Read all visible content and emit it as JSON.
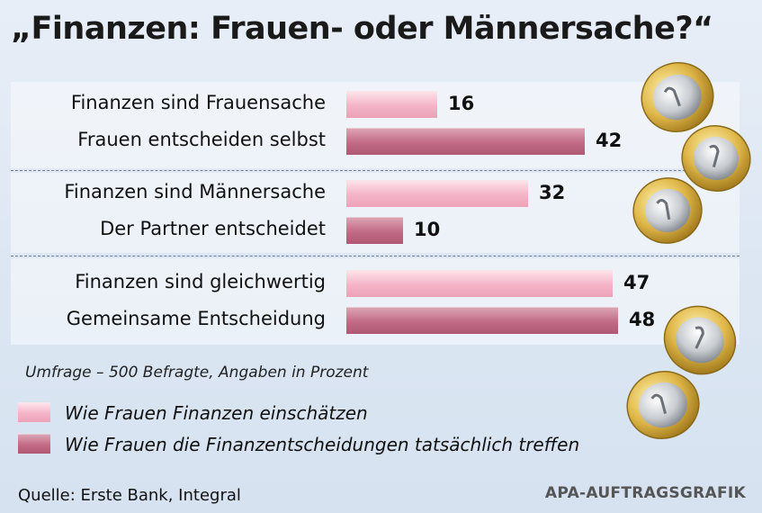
{
  "title": "„Finanzen: Frauen- oder Männersache?“",
  "chart_data": {
    "type": "bar",
    "orientation": "horizontal",
    "title": "„Finanzen: Frauen- oder Männersache?“",
    "unit": "Prozent",
    "categories": [
      "Finanzen sind Frauensache",
      "Frauen entscheiden selbst",
      "Finanzen sind Männersache",
      "Der Partner entscheidet",
      "Finanzen sind gleichwertig",
      "Gemeinsame Entscheidung"
    ],
    "values": [
      16,
      42,
      32,
      10,
      47,
      48
    ],
    "series_index": [
      0,
      1,
      0,
      1,
      0,
      1
    ],
    "groups": [
      [
        0,
        1
      ],
      [
        2,
        3
      ],
      [
        4,
        5
      ]
    ],
    "series": [
      {
        "name": "Wie Frauen Finanzen einschätzen",
        "color": "#f4b3c6"
      },
      {
        "name": "Wie Frauen die Finanzentscheidungen tatsächlich treffen",
        "color": "#c16a85"
      }
    ],
    "legend_position": "bottom-left"
  },
  "note": "Umfrage – 500 Befragte, Angaben in Prozent",
  "source": "Quelle: Erste Bank, Integral",
  "credit": "APA-AUFTRAGSGRAFIK",
  "icons": [
    "euro-coin-icon"
  ]
}
